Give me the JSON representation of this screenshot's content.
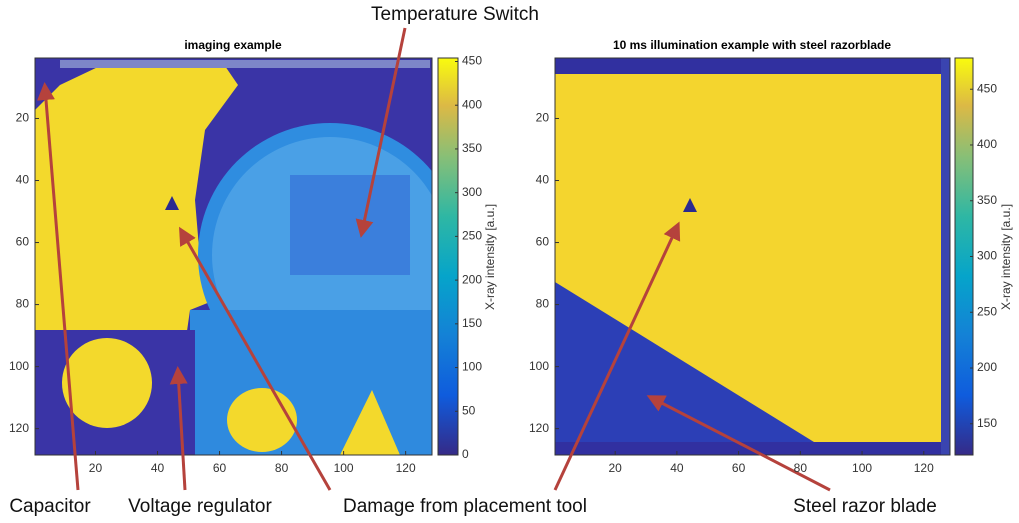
{
  "chart_data": [
    {
      "type": "heatmap",
      "title": "imaging example",
      "xlim": [
        0.5,
        128.5
      ],
      "ylim": [
        0.5,
        128.5
      ],
      "y_reversed": true,
      "xticks": [
        20,
        40,
        60,
        80,
        100,
        120
      ],
      "yticks": [
        20,
        40,
        60,
        80,
        100,
        120
      ],
      "colorbar": {
        "label": "X-ray intensity [a.u.]",
        "lim": [
          0,
          454
        ],
        "ticks": [
          0,
          50,
          100,
          150,
          200,
          250,
          300,
          350,
          400,
          450
        ]
      }
    },
    {
      "type": "heatmap",
      "title": "10 ms illumination example with steel razorblade",
      "xlim": [
        0.5,
        128.5
      ],
      "ylim": [
        0.5,
        128.5
      ],
      "y_reversed": true,
      "xticks": [
        20,
        40,
        60,
        80,
        100,
        120
      ],
      "yticks": [
        20,
        40,
        60,
        80,
        100,
        120
      ],
      "colorbar": {
        "label": "X-ray intensity [a.u.]",
        "lim": [
          122,
          478
        ],
        "ticks": [
          150,
          200,
          250,
          300,
          350,
          400,
          450
        ]
      }
    }
  ],
  "annotations": [
    "Temperature Switch",
    "Capacitor",
    "Voltage regulator",
    "Damage from placement tool",
    "Steel razor blade"
  ]
}
